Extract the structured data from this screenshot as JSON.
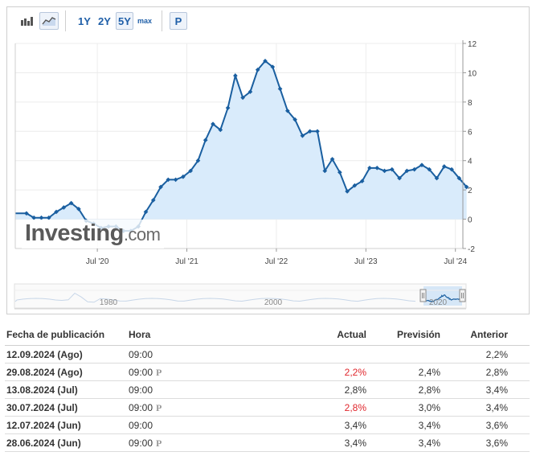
{
  "toolbar": {
    "periods": [
      "1Y",
      "2Y",
      "5Y",
      "max"
    ],
    "active_period": "5Y",
    "p_label": "P"
  },
  "watermark": {
    "main": "Investing",
    "suffix": ".com"
  },
  "navigator": {
    "year_labels": [
      "1980",
      "2000",
      "2020"
    ]
  },
  "chart_data": {
    "type": "area",
    "x_tick_labels": [
      "Jul '20",
      "Jul '21",
      "Jul '22",
      "Jul '23",
      "Jul '24"
    ],
    "y_ticks": [
      -2,
      0,
      2,
      4,
      6,
      8,
      10,
      12
    ],
    "ylim": [
      -2,
      12
    ],
    "y_axis_position": "right",
    "grid": true,
    "line_color": "#1a5fa0",
    "fill_color": "#d9ebfb",
    "series": [
      {
        "x": [
          "2019-09",
          "2019-10",
          "2019-11",
          "2019-12",
          "2020-01",
          "2020-02",
          "2020-03",
          "2020-04",
          "2020-05",
          "2020-06",
          "2020-07",
          "2020-08",
          "2020-09",
          "2020-10",
          "2020-11",
          "2020-12",
          "2021-01",
          "2021-02",
          "2021-03",
          "2021-04",
          "2021-05",
          "2021-06",
          "2021-07",
          "2021-08",
          "2021-09",
          "2021-10",
          "2021-11",
          "2021-12",
          "2022-01",
          "2022-02",
          "2022-03",
          "2022-04",
          "2022-05",
          "2022-06",
          "2022-07",
          "2022-08",
          "2022-09",
          "2022-10",
          "2022-11",
          "2022-12",
          "2023-01",
          "2023-02",
          "2023-03",
          "2023-04",
          "2023-05",
          "2023-06",
          "2023-07",
          "2023-08",
          "2023-09",
          "2023-10",
          "2023-11",
          "2023-12",
          "2024-01",
          "2024-02",
          "2024-03",
          "2024-04",
          "2024-05",
          "2024-06",
          "2024-07",
          "2024-08"
        ],
        "values": [
          0.4,
          0.1,
          0.1,
          0.1,
          0.5,
          0.8,
          1.1,
          0.7,
          -0.1,
          -0.3,
          -0.6,
          -0.5,
          -0.5,
          -0.8,
          -0.8,
          -0.5,
          0.5,
          1.3,
          2.2,
          2.7,
          2.7,
          2.9,
          3.3,
          4.0,
          5.4,
          6.5,
          6.1,
          7.6,
          9.8,
          8.3,
          8.7,
          10.2,
          10.8,
          10.4,
          8.9,
          7.4,
          6.8,
          5.7,
          6.0,
          6.0,
          3.3,
          4.1,
          3.2,
          1.9,
          2.3,
          2.6,
          3.5,
          3.5,
          3.3,
          3.4,
          2.8,
          3.3,
          3.4,
          3.7,
          3.4,
          2.8,
          3.6,
          3.4,
          2.8,
          2.2
        ]
      }
    ]
  },
  "table": {
    "headers": {
      "date": "Fecha de publicación",
      "time": "Hora",
      "actual": "Actual",
      "forecast": "Previsión",
      "previous": "Anterior"
    },
    "rows": [
      {
        "date": "12.09.2024 (Ago)",
        "time": "09:00",
        "p": "",
        "actual": "",
        "actual_color": "",
        "forecast": "",
        "previous": "2,2%"
      },
      {
        "date": "29.08.2024 (Ago)",
        "time": "09:00",
        "p": "P",
        "actual": "2,2%",
        "actual_color": "red",
        "forecast": "2,4%",
        "previous": "2,8%"
      },
      {
        "date": "13.08.2024 (Jul)",
        "time": "09:00",
        "p": "",
        "actual": "2,8%",
        "actual_color": "",
        "forecast": "2,8%",
        "previous": "3,4%"
      },
      {
        "date": "30.07.2024 (Jul)",
        "time": "09:00",
        "p": "P",
        "actual": "2,8%",
        "actual_color": "red",
        "forecast": "3,0%",
        "previous": "3,4%"
      },
      {
        "date": "12.07.2024 (Jun)",
        "time": "09:00",
        "p": "",
        "actual": "3,4%",
        "actual_color": "",
        "forecast": "3,4%",
        "previous": "3,6%"
      },
      {
        "date": "28.06.2024 (Jun)",
        "time": "09:00",
        "p": "P",
        "actual": "3,4%",
        "actual_color": "",
        "forecast": "3,4%",
        "previous": "3,6%"
      }
    ]
  }
}
